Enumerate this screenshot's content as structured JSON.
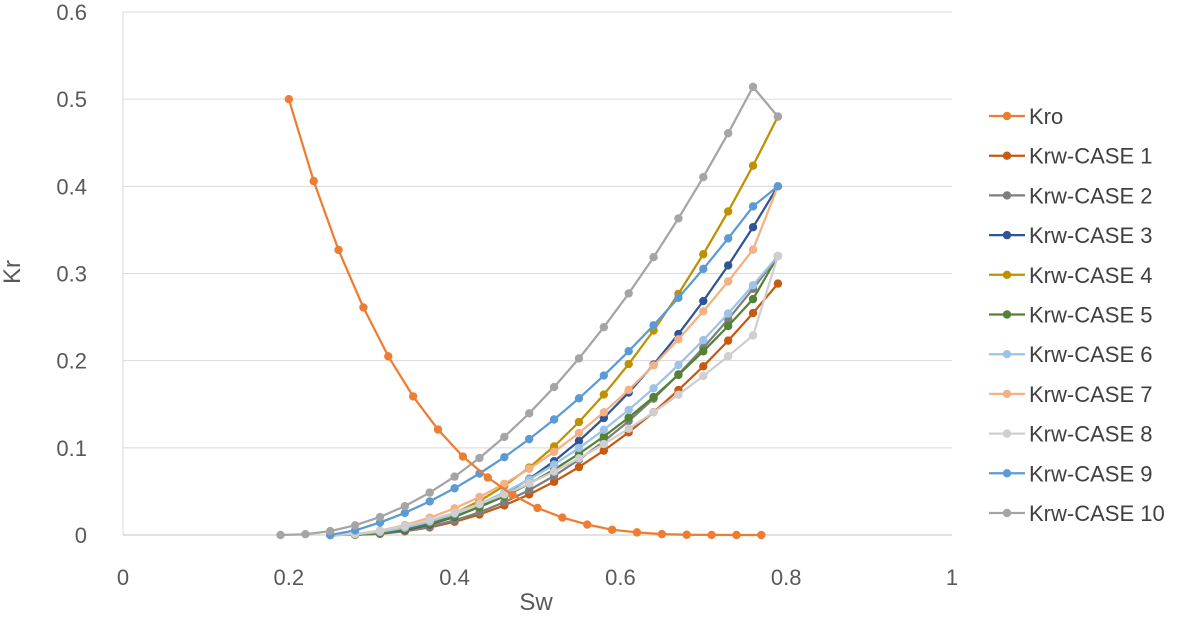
{
  "chart_data": {
    "type": "scatter-line",
    "title": "",
    "xlabel": "Sw",
    "ylabel": "Kr",
    "xlim": [
      0,
      1
    ],
    "ylim": [
      0,
      0.6
    ],
    "x_ticks": [
      0,
      0.2,
      0.4,
      0.6,
      0.8,
      1
    ],
    "y_ticks": [
      0,
      0.1,
      0.2,
      0.3,
      0.4,
      0.5,
      0.6
    ],
    "x_tick_labels": [
      "0",
      "0.2",
      "0.4",
      "0.6",
      "0.8",
      "1"
    ],
    "y_tick_labels": [
      "0",
      "0.1",
      "0.2",
      "0.3",
      "0.4",
      "0.5",
      "0.6"
    ],
    "grid": "horizontal",
    "legend_position": "right",
    "series": [
      {
        "name": "Kro",
        "color": "#ED7D31",
        "x": [
          0.2,
          0.23,
          0.26,
          0.29,
          0.32,
          0.35,
          0.38,
          0.41,
          0.44,
          0.47,
          0.5,
          0.53,
          0.56,
          0.59,
          0.62,
          0.65,
          0.68,
          0.71,
          0.74,
          0.77
        ],
        "y": [
          0.5,
          0.406,
          0.327,
          0.261,
          0.205,
          0.159,
          0.121,
          0.09,
          0.066,
          0.046,
          0.031,
          0.02,
          0.012,
          0.006,
          0.003,
          0.001,
          0.0003,
          0.0001,
          0,
          0
        ]
      },
      {
        "name": "Krw-CASE 1",
        "color": "#C55A11",
        "x": [
          0.25,
          0.28,
          0.31,
          0.34,
          0.37,
          0.4,
          0.43,
          0.46,
          0.49,
          0.52,
          0.55,
          0.58,
          0.61,
          0.64,
          0.67,
          0.7,
          0.73,
          0.76,
          0.79
        ],
        "y": [
          0,
          0.0002,
          0.0014,
          0.0042,
          0.0087,
          0.0151,
          0.0235,
          0.034,
          0.0465,
          0.0611,
          0.0779,
          0.0968,
          0.1178,
          0.1409,
          0.1662,
          0.1935,
          0.223,
          0.2546,
          0.2884
        ]
      },
      {
        "name": "Krw-CASE 2",
        "color": "#7F7F7F",
        "x": [
          0.25,
          0.28,
          0.31,
          0.34,
          0.37,
          0.4,
          0.43,
          0.46,
          0.49,
          0.52,
          0.55,
          0.58,
          0.61,
          0.64,
          0.67,
          0.7,
          0.73,
          0.76,
          0.79
        ],
        "y": [
          0,
          0.0002,
          0.0015,
          0.0046,
          0.0096,
          0.0167,
          0.026,
          0.0376,
          0.0515,
          0.0678,
          0.0864,
          0.1074,
          0.1307,
          0.1564,
          0.1844,
          0.2147,
          0.2474,
          0.2825,
          0.32
        ]
      },
      {
        "name": "Krw-CASE 3",
        "color": "#2F5597",
        "x": [
          0.25,
          0.28,
          0.31,
          0.34,
          0.37,
          0.4,
          0.43,
          0.46,
          0.49,
          0.52,
          0.55,
          0.58,
          0.61,
          0.64,
          0.67,
          0.7,
          0.73,
          0.76,
          0.79
        ],
        "y": [
          0,
          0.0003,
          0.0019,
          0.0057,
          0.012,
          0.0208,
          0.0325,
          0.047,
          0.0644,
          0.0847,
          0.108,
          0.1342,
          0.1634,
          0.1955,
          0.2305,
          0.2684,
          0.3093,
          0.3531,
          0.4
        ]
      },
      {
        "name": "Krw-CASE 4",
        "color": "#BF9000",
        "x": [
          0.25,
          0.28,
          0.31,
          0.34,
          0.37,
          0.4,
          0.43,
          0.46,
          0.49,
          0.52,
          0.55,
          0.58,
          0.61,
          0.64,
          0.67,
          0.7,
          0.73,
          0.76,
          0.79
        ],
        "y": [
          0,
          0.0003,
          0.0023,
          0.0069,
          0.0144,
          0.025,
          0.039,
          0.0564,
          0.0773,
          0.1016,
          0.1296,
          0.1611,
          0.1961,
          0.2346,
          0.2766,
          0.3221,
          0.3712,
          0.4237,
          0.48
        ]
      },
      {
        "name": "Krw-CASE 5",
        "color": "#548235",
        "x": [
          0.25,
          0.28,
          0.31,
          0.34,
          0.37,
          0.4,
          0.43,
          0.46,
          0.49,
          0.52,
          0.55,
          0.58,
          0.61,
          0.64,
          0.67,
          0.7,
          0.73,
          0.76,
          0.79
        ],
        "y": [
          0,
          0.0004,
          0.0024,
          0.0066,
          0.013,
          0.0215,
          0.032,
          0.0444,
          0.0587,
          0.075,
          0.0931,
          0.113,
          0.1347,
          0.1583,
          0.1837,
          0.2108,
          0.2398,
          0.2706,
          0.32
        ]
      },
      {
        "name": "Krw-CASE 6",
        "color": "#9DC3E6",
        "x": [
          0.25,
          0.28,
          0.31,
          0.34,
          0.37,
          0.4,
          0.43,
          0.46,
          0.49,
          0.52,
          0.55,
          0.58,
          0.61,
          0.64,
          0.67,
          0.7,
          0.73,
          0.76,
          0.79
        ],
        "y": [
          0,
          0.0007,
          0.0035,
          0.0085,
          0.0155,
          0.0246,
          0.0357,
          0.0488,
          0.0638,
          0.0808,
          0.0998,
          0.1207,
          0.1435,
          0.1683,
          0.195,
          0.2236,
          0.2541,
          0.2866,
          0.32
        ]
      },
      {
        "name": "Krw-CASE 7",
        "color": "#F4B183",
        "x": [
          0.25,
          0.28,
          0.31,
          0.34,
          0.37,
          0.4,
          0.43,
          0.46,
          0.49,
          0.52,
          0.55,
          0.58,
          0.61,
          0.64,
          0.67,
          0.7,
          0.73,
          0.76,
          0.79
        ],
        "y": [
          0,
          0.0012,
          0.0051,
          0.0114,
          0.0199,
          0.0306,
          0.0436,
          0.0587,
          0.076,
          0.0954,
          0.117,
          0.1407,
          0.1665,
          0.1945,
          0.2245,
          0.2566,
          0.2909,
          0.3273,
          0.4
        ]
      },
      {
        "name": "Krw-CASE 8",
        "color": "#D0CECE",
        "x": [
          0.25,
          0.28,
          0.31,
          0.34,
          0.37,
          0.4,
          0.43,
          0.46,
          0.49,
          0.52,
          0.55,
          0.58,
          0.61,
          0.64,
          0.67,
          0.7,
          0.73,
          0.76,
          0.79
        ],
        "y": [
          0,
          0.0012,
          0.0049,
          0.0103,
          0.0172,
          0.0256,
          0.0354,
          0.0465,
          0.059,
          0.0728,
          0.0879,
          0.1043,
          0.1219,
          0.1408,
          0.161,
          0.1824,
          0.2051,
          0.229,
          0.32
        ]
      },
      {
        "name": "Krw-CASE 9",
        "color": "#5B9BD5",
        "x": [
          0.25,
          0.28,
          0.31,
          0.34,
          0.37,
          0.4,
          0.43,
          0.46,
          0.49,
          0.52,
          0.55,
          0.58,
          0.61,
          0.64,
          0.67,
          0.7,
          0.73,
          0.76,
          0.79
        ],
        "y": [
          0,
          0.0053,
          0.0143,
          0.0254,
          0.0385,
          0.0536,
          0.0705,
          0.0893,
          0.11,
          0.1325,
          0.1568,
          0.1829,
          0.2109,
          0.2406,
          0.2721,
          0.3053,
          0.3403,
          0.377,
          0.4
        ]
      },
      {
        "name": "Krw-CASE 10",
        "color": "#A5A5A5",
        "x": [
          0.19,
          0.22,
          0.25,
          0.28,
          0.31,
          0.34,
          0.37,
          0.4,
          0.43,
          0.46,
          0.49,
          0.52,
          0.55,
          0.58,
          0.61,
          0.64,
          0.67,
          0.7,
          0.73,
          0.76,
          0.79
        ],
        "y": [
          0,
          0.0009,
          0.0045,
          0.0111,
          0.0206,
          0.0331,
          0.0486,
          0.067,
          0.0883,
          0.1125,
          0.1396,
          0.1697,
          0.2026,
          0.2384,
          0.2771,
          0.3187,
          0.3632,
          0.4106,
          0.4609,
          0.5141,
          0.48
        ]
      }
    ]
  }
}
